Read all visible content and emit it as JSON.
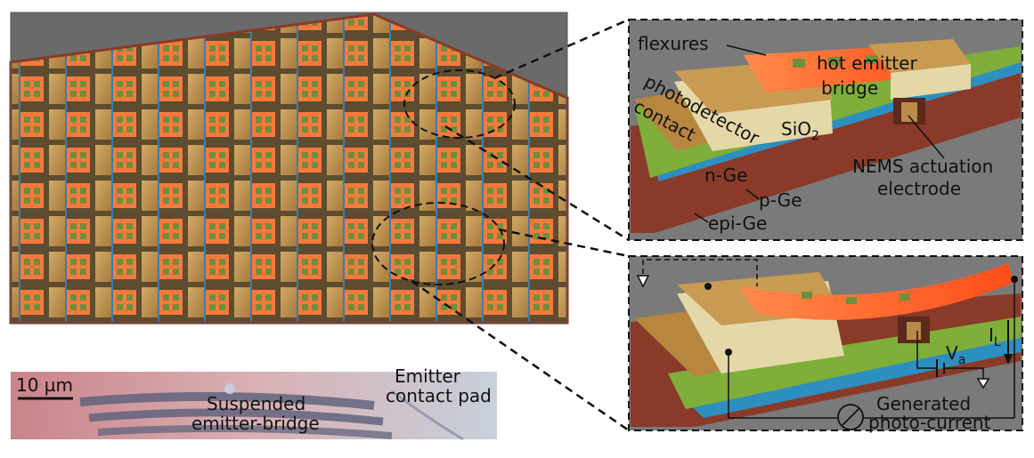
{
  "main_render": {
    "name": "device-array-render"
  },
  "micrograph": {
    "scale_bar": "10 µm",
    "label_suspended_line1": "Suspended",
    "label_suspended_line2": "emitter-bridge",
    "label_contact_line1": "Emitter",
    "label_contact_line2": "contact pad"
  },
  "detail_top": {
    "flexures": "flexures",
    "hot_emitter_line1": "hot emitter",
    "hot_emitter_line2": "bridge",
    "photodetector": "photodetector",
    "contact": "contact",
    "sio2": "SiO",
    "sio2_sub": "2",
    "n_ge": "n-Ge",
    "p_ge": "p-Ge",
    "epi_ge": "epi-Ge",
    "nems_line1": "NEMS actuation",
    "nems_line2": "electrode"
  },
  "detail_bottom": {
    "va": "V",
    "va_sub": "a",
    "il": "I",
    "il_sub": "L",
    "generated_line1": "Generated",
    "generated_line2": "photo-current"
  },
  "colors": {
    "substrate": "#8a3a28",
    "gold": "#c79a55",
    "emitter": "#ff6a2b",
    "nge": "#7fae3a",
    "pge": "#2c8fc0",
    "background": "#7a7a7a"
  }
}
